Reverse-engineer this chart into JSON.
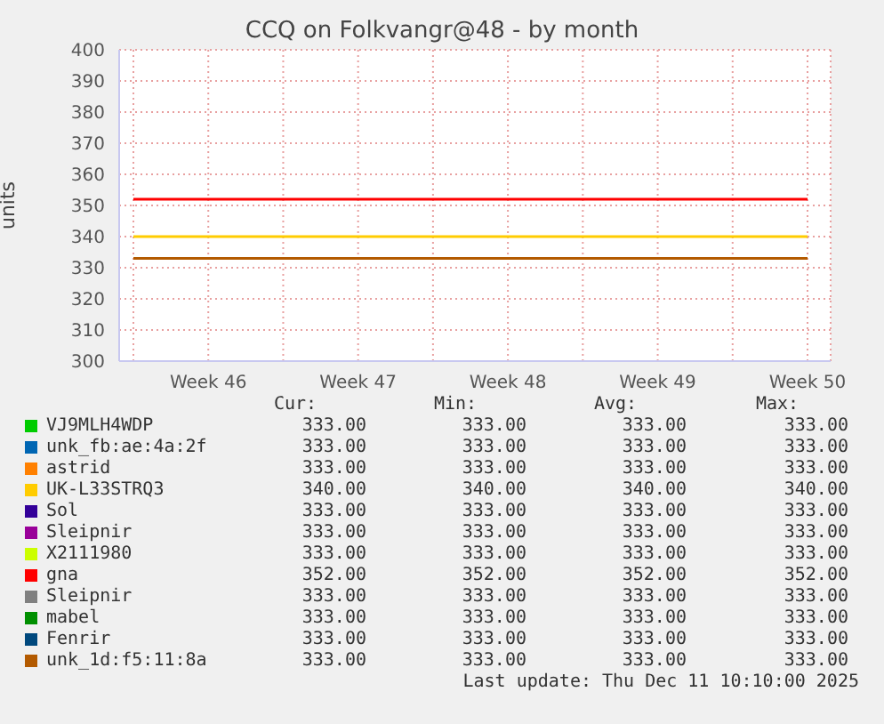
{
  "chart_data": {
    "type": "line",
    "title": "CCQ on Folkvangr@48 - by month",
    "ylabel": "units",
    "categories": [
      null,
      "Week 46",
      null,
      "Week 47",
      null,
      "Week 48",
      null,
      "Week 49",
      null,
      "Week 50"
    ],
    "ylim": [
      300,
      400
    ],
    "yticks": [
      300,
      310,
      320,
      330,
      340,
      350,
      360,
      370,
      380,
      390,
      400
    ],
    "grid": true,
    "legend": "bottom",
    "series": [
      {
        "name": "VJ9MLH4WDP",
        "color": "#00cc00",
        "values": [
          null,
          null,
          null,
          null,
          null,
          null,
          null,
          null,
          null,
          null
        ]
      },
      {
        "name": "unk_fb:ae:4a:2f",
        "color": "#0066b3",
        "values": [
          null,
          null,
          null,
          null,
          null,
          null,
          null,
          null,
          null,
          null
        ]
      },
      {
        "name": "astrid",
        "color": "#ff8000",
        "values": [
          null,
          null,
          null,
          null,
          null,
          null,
          null,
          null,
          null,
          null
        ]
      },
      {
        "name": "UK-L33STRQ3",
        "color": "#ffcc00",
        "values": [
          340,
          340,
          340,
          340,
          340,
          340,
          340,
          340,
          340,
          340
        ]
      },
      {
        "name": "Sol",
        "color": "#330099",
        "values": [
          null,
          null,
          null,
          null,
          null,
          null,
          null,
          null,
          null,
          null
        ]
      },
      {
        "name": "Sleipnir",
        "color": "#990099",
        "values": [
          null,
          null,
          null,
          null,
          null,
          null,
          null,
          null,
          null,
          null
        ]
      },
      {
        "name": "X2111980",
        "color": "#ccff00",
        "values": [
          null,
          null,
          null,
          null,
          null,
          null,
          null,
          null,
          null,
          null
        ]
      },
      {
        "name": "gna",
        "color": "#ff0000",
        "values": [
          352,
          352,
          352,
          352,
          352,
          352,
          352,
          352,
          352,
          352
        ]
      },
      {
        "name": "Sleipnir",
        "color": "#808080",
        "values": [
          null,
          null,
          null,
          null,
          null,
          null,
          null,
          null,
          null,
          null
        ]
      },
      {
        "name": "mabel",
        "color": "#008f00",
        "values": [
          null,
          null,
          null,
          null,
          null,
          null,
          null,
          null,
          null,
          null
        ]
      },
      {
        "name": "Fenrir",
        "color": "#00487d",
        "values": [
          null,
          null,
          null,
          null,
          null,
          null,
          null,
          null,
          null,
          null
        ]
      },
      {
        "name": "unk_1d:f5:11:8a",
        "color": "#b35a00",
        "values": [
          333,
          333,
          333,
          333,
          333,
          333,
          333,
          333,
          333,
          333
        ]
      }
    ],
    "annotations": [
      "Cur:",
      "Min:",
      "Avg:",
      "Max:",
      "333.00",
      "333.00",
      "333.00",
      "333.00",
      "333.00",
      "333.00",
      "333.00",
      "333.00",
      "333.00",
      "333.00",
      "333.00",
      "333.00",
      "340.00",
      "340.00",
      "340.00",
      "340.00",
      "333.00",
      "333.00",
      "333.00",
      "333.00",
      "333.00",
      "333.00",
      "333.00",
      "333.00",
      "333.00",
      "333.00",
      "333.00",
      "333.00",
      "352.00",
      "352.00",
      "352.00",
      "352.00",
      "333.00",
      "333.00",
      "333.00",
      "333.00",
      "333.00",
      "333.00",
      "333.00",
      "333.00",
      "333.00",
      "333.00",
      "333.00",
      "333.00",
      "333.00",
      "333.00",
      "333.00",
      "333.00",
      "Last update: Thu Dec 11 10:10:00 2025"
    ]
  }
}
